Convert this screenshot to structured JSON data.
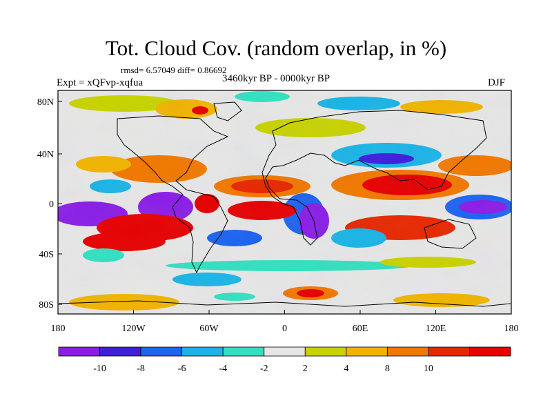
{
  "title": "Tot. Cloud Cov. (random overlap, in %)",
  "stats": "rmsd= 6.57049 diff= 0.86692",
  "experiment": "Expt = xQFvp-xqfua",
  "period": "3460kyr BP - 0000kyr BP",
  "season": "DJF",
  "axes": {
    "x_ticks": [
      "180",
      "120W",
      "60W",
      "0",
      "60E",
      "120E",
      "180"
    ],
    "y_ticks": [
      "80N",
      "40N",
      "0",
      "40S",
      "80S"
    ]
  },
  "colorbar": {
    "labels": [
      "-10",
      "-8",
      "-6",
      "-4",
      "-2",
      "2",
      "4",
      "8",
      "10"
    ],
    "colors": [
      "#8a1ee6",
      "#3f1fdc",
      "#1e64f0",
      "#1ab4e6",
      "#32e0c0",
      "#e6e6e6",
      "#c8d200",
      "#f0b400",
      "#f07800",
      "#e62800",
      "#e60000"
    ]
  }
}
